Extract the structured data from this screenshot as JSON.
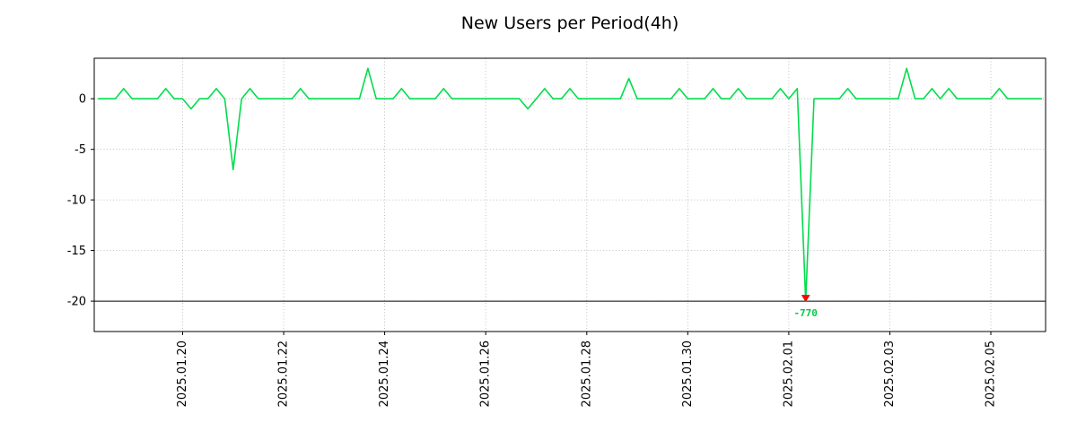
{
  "title": "New Users per Period(4h)",
  "chart_data": {
    "type": "line",
    "title": "New Users per Period(4h)",
    "xlabel": "",
    "ylabel": "",
    "grid": true,
    "legend": false,
    "series_name": "new users",
    "series_color": "#00dd4c",
    "x_start": "2025-01-18 08:00",
    "x_step_hours": 4,
    "values": [
      0,
      0,
      0,
      1,
      0,
      0,
      0,
      0,
      1,
      0,
      0,
      -1,
      0,
      0,
      1,
      0,
      -7,
      0,
      1,
      0,
      0,
      0,
      0,
      0,
      1,
      0,
      0,
      0,
      0,
      0,
      0,
      0,
      3,
      0,
      0,
      0,
      1,
      0,
      0,
      0,
      0,
      1,
      0,
      0,
      0,
      0,
      0,
      0,
      0,
      0,
      0,
      -1,
      0,
      1,
      0,
      0,
      1,
      0,
      0,
      0,
      0,
      0,
      0,
      2,
      0,
      0,
      0,
      0,
      0,
      1,
      0,
      0,
      0,
      1,
      0,
      0,
      1,
      0,
      0,
      0,
      0,
      1,
      0,
      1,
      -770,
      0,
      0,
      0,
      0,
      1,
      0,
      0,
      0,
      0,
      0,
      0,
      3,
      0,
      0,
      1,
      0,
      1,
      0,
      0,
      0,
      0,
      0,
      1,
      0,
      0,
      0,
      0,
      0
    ],
    "ylim": [
      -23,
      4
    ],
    "y_ticks": [
      0,
      -5,
      -10,
      -15,
      -20
    ],
    "x_tick_indices": [
      10,
      22,
      34,
      46,
      58,
      70,
      82,
      94,
      106
    ],
    "x_tick_labels": [
      "2025.01.20",
      "2025.01.22",
      "2025.01.24",
      "2025.01.26",
      "2025.01.28",
      "2025.01.30",
      "2025.02.01",
      "2025.02.03",
      "2025.02.05"
    ],
    "clip_min": -20,
    "hline": -20,
    "annotation": {
      "index": 84,
      "value": -770,
      "label": "-770",
      "marker": "red-down-triangle",
      "marker_color": "#ff0000",
      "label_color": "#00cc44"
    }
  }
}
